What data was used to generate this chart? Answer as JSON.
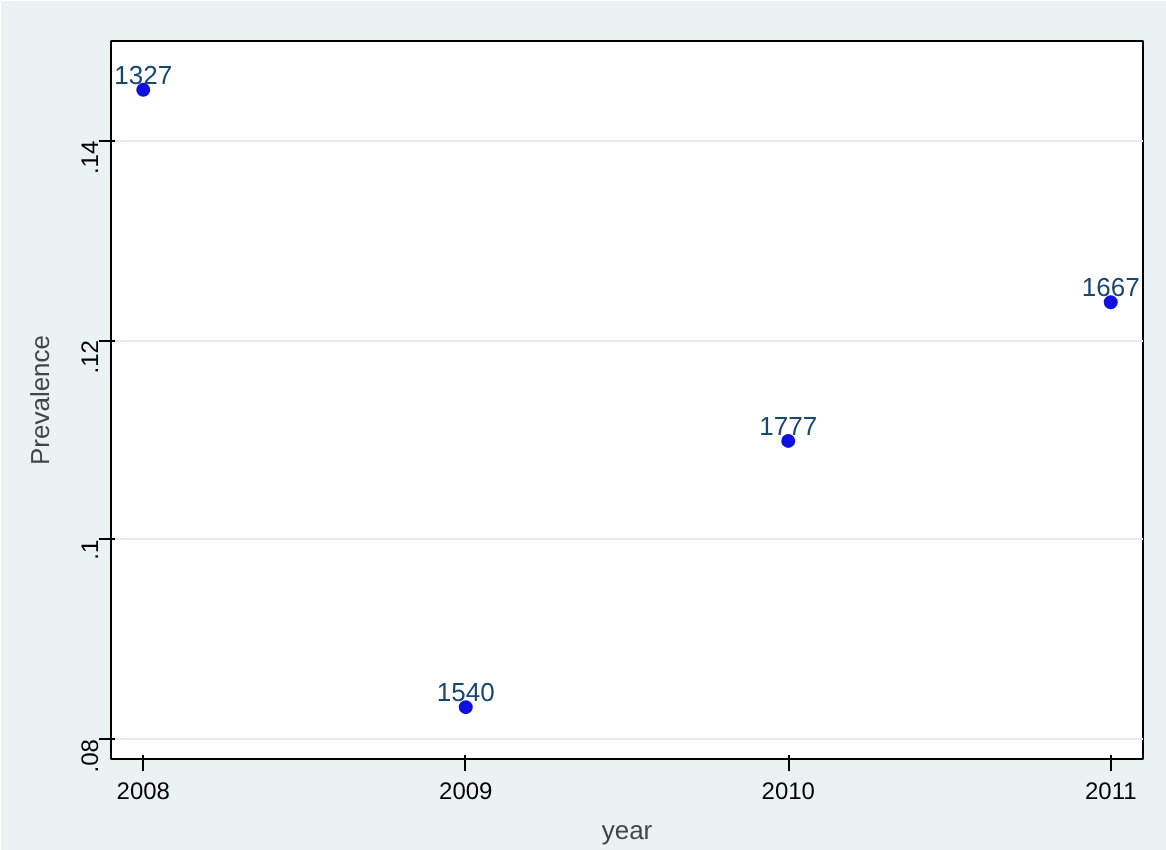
{
  "chart_data": {
    "type": "scatter",
    "xlabel": "year",
    "ylabel": "Prevalence",
    "x": [
      2008,
      2009,
      2010,
      2011
    ],
    "values": [
      0.1451,
      0.0832,
      0.1099,
      0.1238
    ],
    "color": "#1010e0",
    "xlim": [
      2007.9,
      2011.1
    ],
    "ylim": [
      0.078,
      0.15
    ],
    "xticks": [
      2008,
      2009,
      2010,
      2011
    ],
    "yticks": [
      {
        "value": 0.08,
        "label": ".08"
      },
      {
        "value": 0.1,
        "label": ".1"
      },
      {
        "value": 0.12,
        "label": ".12"
      },
      {
        "value": 0.14,
        "label": ".14"
      }
    ],
    "grid": "y",
    "marker": "circle",
    "annotations": [
      {
        "text": "1327",
        "x": 2008,
        "y": 0.1451
      },
      {
        "text": "1540",
        "x": 2009,
        "y": 0.0832
      },
      {
        "text": "1777",
        "x": 2010,
        "y": 0.1099
      },
      {
        "text": "1667",
        "x": 2011,
        "y": 0.1238
      }
    ]
  }
}
